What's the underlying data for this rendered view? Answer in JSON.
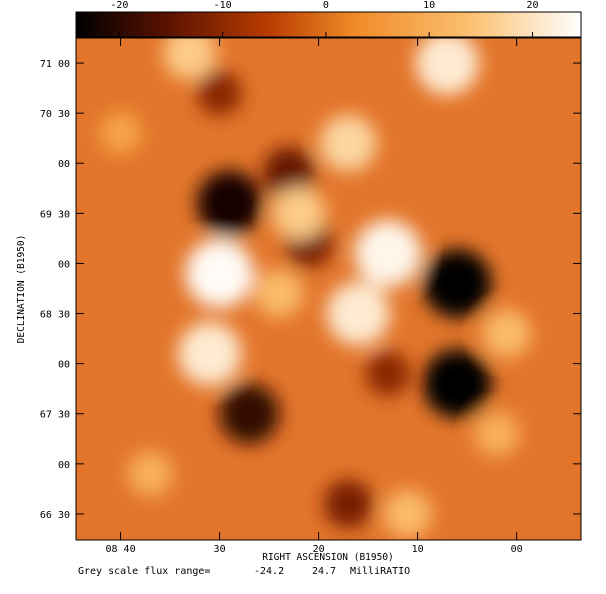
{
  "chart_data": {
    "type": "heatmap",
    "title": "",
    "xlabel": "RIGHT ASCENSION (B1950)",
    "ylabel": "DECLINATION (B1950)",
    "colorbar": {
      "range": [
        -24.2,
        24.7
      ],
      "ticks": [
        -20,
        -10,
        0,
        10,
        20
      ],
      "tick_labels": [
        "-20",
        "-10",
        "0",
        "10",
        "20"
      ],
      "colormap": [
        "#000000",
        "#5a1200",
        "#b83c00",
        "#f08a28",
        "#fbc070",
        "#ffffff"
      ]
    },
    "x_axis": {
      "ticks": [
        {
          "ra_min": 40,
          "label": "08 40"
        },
        {
          "ra_min": 30,
          "label": "30"
        },
        {
          "ra_min": 20,
          "label": "20"
        },
        {
          "ra_min": 10,
          "label": "10"
        },
        {
          "ra_min": 0,
          "label": "00"
        }
      ],
      "range": [
        44.5,
        -6.5
      ]
    },
    "y_axis": {
      "ticks": [
        {
          "dec": 66.5,
          "label": "66 30"
        },
        {
          "dec": 67.0,
          "label": "00"
        },
        {
          "dec": 67.5,
          "label": "67 30"
        },
        {
          "dec": 68.0,
          "label": "00"
        },
        {
          "dec": 68.5,
          "label": "68 30"
        },
        {
          "dec": 69.0,
          "label": "00"
        },
        {
          "dec": 69.5,
          "label": "69 30"
        },
        {
          "dec": 70.0,
          "label": "00"
        },
        {
          "dec": 70.5,
          "label": "70 30"
        },
        {
          "dec": 71.0,
          "label": "71 00"
        }
      ],
      "range": [
        66.24,
        71.25
      ]
    },
    "features": [
      {
        "ra": 29,
        "dec": 69.6,
        "value": -22
      },
      {
        "ra": 23,
        "dec": 69.9,
        "value": -14
      },
      {
        "ra": 6,
        "dec": 68.8,
        "value": -24
      },
      {
        "ra": 6,
        "dec": 67.8,
        "value": -24
      },
      {
        "ra": 27,
        "dec": 67.5,
        "value": -19
      },
      {
        "ra": 21,
        "dec": 69.2,
        "value": -12
      },
      {
        "ra": 30,
        "dec": 70.7,
        "value": -10
      },
      {
        "ra": 17,
        "dec": 66.6,
        "value": -12
      },
      {
        "ra": 13,
        "dec": 67.9,
        "value": -10
      },
      {
        "ra": 30,
        "dec": 68.9,
        "value": 24
      },
      {
        "ra": 13,
        "dec": 69.1,
        "value": 23
      },
      {
        "ra": 16,
        "dec": 68.5,
        "value": 21
      },
      {
        "ra": 31,
        "dec": 68.1,
        "value": 21
      },
      {
        "ra": 7,
        "dec": 71.0,
        "value": 21
      },
      {
        "ra": 17,
        "dec": 70.2,
        "value": 17
      },
      {
        "ra": 22,
        "dec": 69.5,
        "value": 15
      },
      {
        "ra": 33,
        "dec": 71.1,
        "value": 15
      },
      {
        "ra": 11,
        "dec": 66.5,
        "value": 12
      },
      {
        "ra": 40,
        "dec": 70.3,
        "value": 8
      },
      {
        "ra": 1,
        "dec": 68.3,
        "value": 12
      },
      {
        "ra": 2,
        "dec": 67.3,
        "value": 10
      },
      {
        "ra": 37,
        "dec": 66.9,
        "value": 10
      },
      {
        "ra": 24,
        "dec": 68.7,
        "value": 12
      }
    ],
    "footer": {
      "label": "Grey scale flux range=",
      "min": "-24.2",
      "max": "24.7",
      "unit": "MilliRATIO"
    }
  }
}
